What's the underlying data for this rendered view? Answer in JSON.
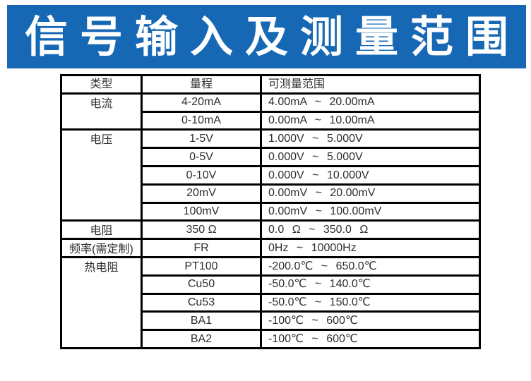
{
  "banner": {
    "title": "信号输入及测量范围",
    "bg_color": "#1768b4",
    "text_color": "#ffffff"
  },
  "table": {
    "border_color": "#000000",
    "text_color": "#2e2e2e",
    "headers": [
      "类型",
      "量程",
      "可测量范围"
    ],
    "groups": [
      {
        "type": "电流",
        "rows": [
          {
            "range": "4-20mA",
            "measurable": "4.00mA ~ 20.00mA"
          },
          {
            "range": "0-10mA",
            "measurable": "0.00mA ~ 10.00mA"
          }
        ]
      },
      {
        "type": "电压",
        "rows": [
          {
            "range": "1-5V",
            "measurable": "1.000V ~ 5.000V"
          },
          {
            "range": "0-5V",
            "measurable": "0.000V ~ 5.000V"
          },
          {
            "range": "0-10V",
            "measurable": "0.000V ~ 10.000V"
          },
          {
            "range": "20mV",
            "measurable": "0.00mV ~ 20.00mV"
          },
          {
            "range": "100mV",
            "measurable": "0.00mV ~ 100.00mV"
          }
        ]
      },
      {
        "type": "电阻",
        "rows": [
          {
            "range": "350 Ω",
            "measurable": "0.0 Ω ~ 350.0 Ω"
          }
        ]
      },
      {
        "type": "频率(需定制)",
        "rows": [
          {
            "range": "FR",
            "measurable": "0Hz ~ 10000Hz"
          }
        ]
      },
      {
        "type": "热电阻",
        "rows": [
          {
            "range": "PT100",
            "measurable": "-200.0℃ ~ 650.0℃"
          },
          {
            "range": "Cu50",
            "measurable": "-50.0℃ ~ 140.0℃"
          },
          {
            "range": "Cu53",
            "measurable": "-50.0℃ ~ 150.0℃"
          },
          {
            "range": "BA1",
            "measurable": "-100℃ ~ 600℃"
          },
          {
            "range": "BA2",
            "measurable": "-100℃ ~ 600℃"
          }
        ]
      }
    ]
  }
}
